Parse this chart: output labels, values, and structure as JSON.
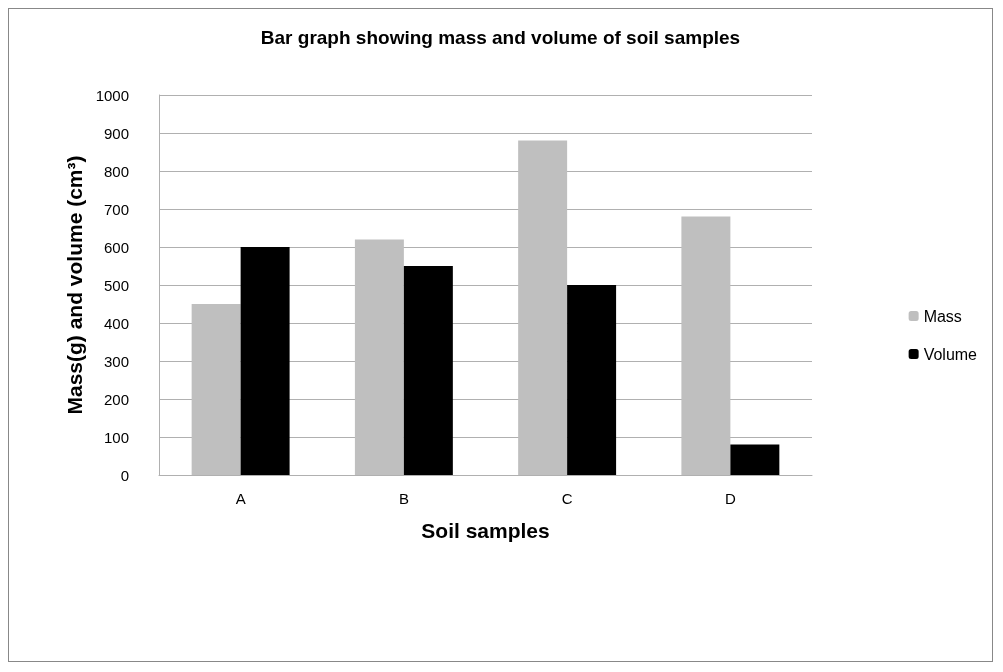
{
  "chart_data": {
    "type": "bar",
    "title": "Bar graph showing mass and volume of soil samples",
    "xlabel": "Soil samples",
    "ylabel": "Mass(g) and volume (cm³)",
    "categories": [
      "A",
      "B",
      "C",
      "D"
    ],
    "series": [
      {
        "name": "Mass",
        "color": "#bfbfbf",
        "values": [
          450,
          620,
          880,
          680
        ]
      },
      {
        "name": "Volume",
        "color": "#000000",
        "values": [
          600,
          550,
          500,
          80
        ]
      }
    ],
    "ylim": [
      0,
      1000
    ],
    "yticks": [
      0,
      100,
      200,
      300,
      400,
      500,
      600,
      700,
      800,
      900,
      1000
    ],
    "grid": "y",
    "legend": "right"
  }
}
